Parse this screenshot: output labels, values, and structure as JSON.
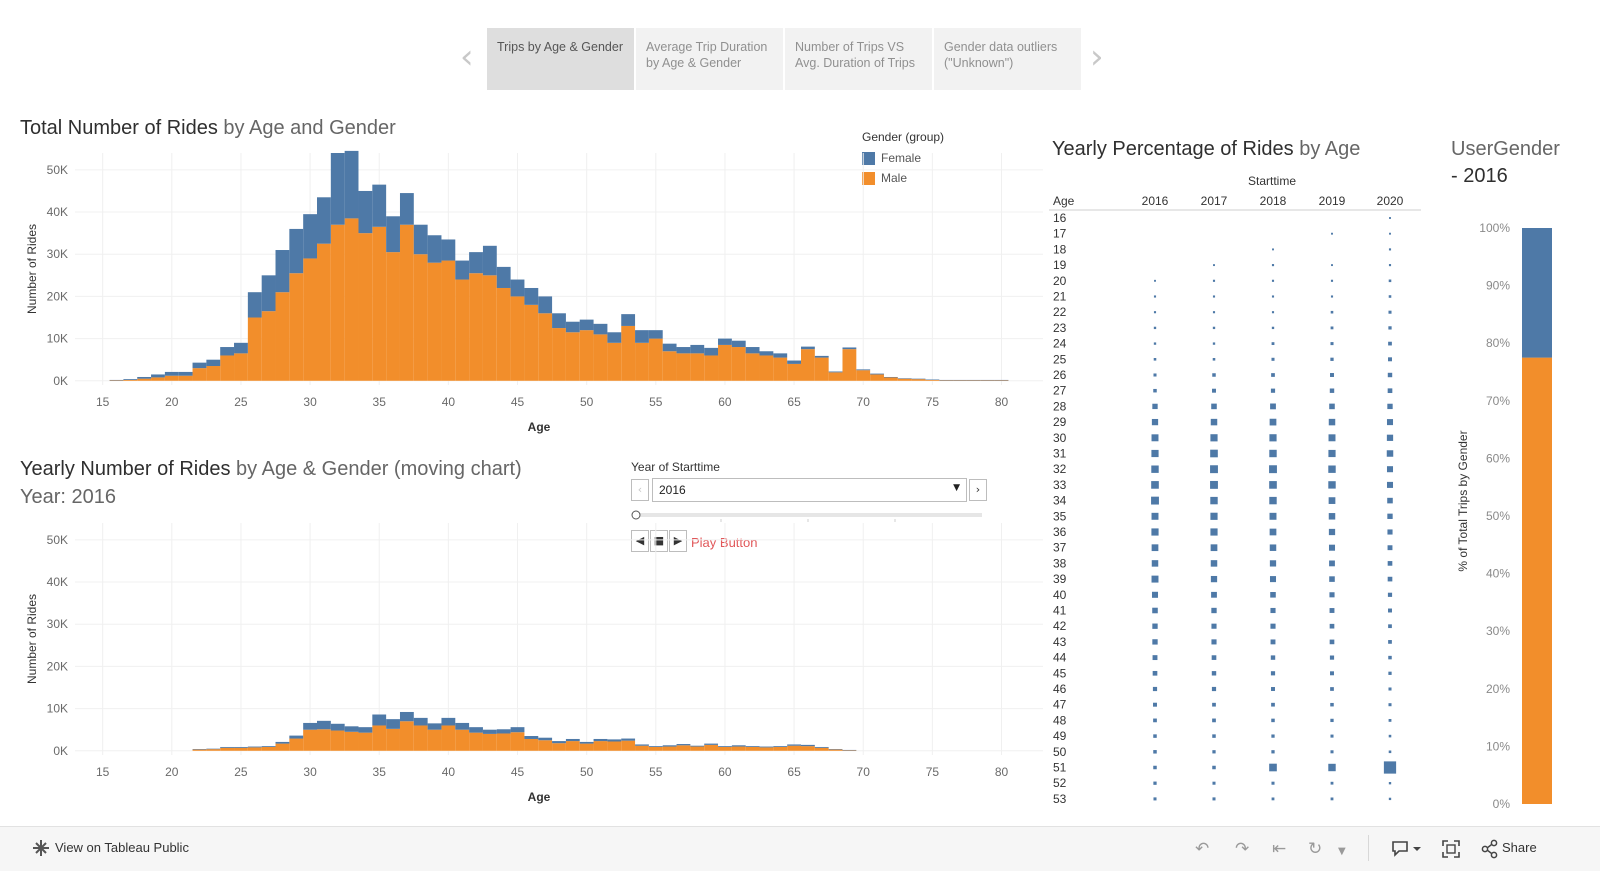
{
  "story": {
    "tabs": [
      {
        "label": "Trips by Age & Gender",
        "active": true
      },
      {
        "label": "Average Trip Duration by Age & Gender",
        "active": false
      },
      {
        "label": "Number of Trips VS Avg. Duration of Trips",
        "active": false
      },
      {
        "label": "Gender data  outliers (\"Unknown\")",
        "active": false
      }
    ],
    "prev_icon": "chevron-left-icon",
    "next_icon": "chevron-right-icon"
  },
  "chart1": {
    "title_bold": "Total Number of Rides",
    "title_rest": " by Age and Gender"
  },
  "legend": {
    "title": "Gender (group)",
    "items": [
      {
        "label": "Female",
        "color": "#4e79a7"
      },
      {
        "label": "Male",
        "color": "#f28e2b"
      }
    ]
  },
  "chart2": {
    "title_bold": "Yearly Number of Rides",
    "title_rest": " by Age & Gender (moving chart)",
    "subtitle": "Year: 2016"
  },
  "year_filter": {
    "label": "Year of Starttime",
    "value": "2016",
    "play_label": "Play Button"
  },
  "chart3": {
    "title_bold": "Yearly Percentage of Rides",
    "title_rest": " by Age",
    "col_header": "Starttime",
    "row_header": "Age"
  },
  "chart4": {
    "title_line1": "UserGender",
    "title_line2": "- 2016",
    "ylabel": "% of Total Trips by Gender"
  },
  "footer": {
    "view_label": "View on Tableau Public",
    "share_label": "Share"
  },
  "chart_data": [
    {
      "type": "bar",
      "stacked": true,
      "title": "Total Number of Rides by Age and Gender",
      "xlabel": "Age",
      "ylabel": "Number of Rides",
      "xlim": [
        13,
        83
      ],
      "ylim": [
        -1000,
        54000
      ],
      "x_ticks": [
        15,
        20,
        25,
        30,
        35,
        40,
        45,
        50,
        55,
        60,
        65,
        70,
        75,
        80
      ],
      "y_ticks": [
        {
          "value": 0,
          "label": "0K"
        },
        {
          "value": 10000,
          "label": "10K"
        },
        {
          "value": 20000,
          "label": "20K"
        },
        {
          "value": 30000,
          "label": "30K"
        },
        {
          "value": 40000,
          "label": "40K"
        },
        {
          "value": 50000,
          "label": "50K"
        }
      ],
      "x": [
        16,
        17,
        18,
        19,
        20,
        21,
        22,
        23,
        24,
        25,
        26,
        27,
        28,
        29,
        30,
        31,
        32,
        33,
        34,
        35,
        36,
        37,
        38,
        39,
        40,
        41,
        42,
        43,
        44,
        45,
        46,
        47,
        48,
        49,
        50,
        51,
        52,
        53,
        54,
        55,
        56,
        57,
        58,
        59,
        60,
        61,
        62,
        63,
        64,
        65,
        66,
        67,
        68,
        69,
        70,
        71,
        72,
        73,
        74,
        75,
        76,
        77,
        78,
        79,
        80
      ],
      "series": [
        {
          "name": "Male",
          "color": "#f28e2b",
          "values": [
            100,
            200,
            500,
            800,
            1200,
            1200,
            3000,
            3500,
            6000,
            6500,
            15000,
            16500,
            21000,
            25500,
            29000,
            32500,
            37000,
            38500,
            35000,
            36500,
            30500,
            37000,
            30000,
            28000,
            28500,
            24000,
            25500,
            25000,
            22000,
            20000,
            18000,
            16000,
            12500,
            11500,
            12000,
            11000,
            9000,
            13000,
            9000,
            10000,
            7000,
            6500,
            6500,
            6000,
            8500,
            8000,
            6500,
            6000,
            5500,
            4000,
            7500,
            5500,
            2000,
            7500,
            2500,
            1500,
            800,
            500,
            400,
            200,
            100,
            100,
            100,
            100,
            100
          ]
        },
        {
          "name": "Female",
          "color": "#4e79a7",
          "values": [
            100,
            200,
            400,
            700,
            900,
            900,
            1300,
            1500,
            2000,
            2500,
            6000,
            8500,
            10000,
            10500,
            10500,
            11000,
            17000,
            16000,
            10000,
            10000,
            8500,
            7500,
            7000,
            6500,
            5000,
            4500,
            5000,
            7000,
            5000,
            4000,
            4000,
            4000,
            3500,
            2500,
            2500,
            2500,
            2500,
            2800,
            3000,
            2000,
            1800,
            1500,
            2000,
            1800,
            1500,
            1500,
            1500,
            1000,
            1000,
            800,
            600,
            400,
            200,
            400,
            200,
            200,
            100,
            100,
            100,
            100,
            100,
            100,
            100,
            100,
            100
          ]
        }
      ]
    },
    {
      "type": "bar",
      "stacked": true,
      "title": "Yearly Number of Rides by Age & Gender (moving chart)",
      "xlabel": "Age",
      "ylabel": "Number of Rides",
      "xlim": [
        13,
        83
      ],
      "ylim": [
        -1000,
        54000
      ],
      "x_ticks": [
        15,
        20,
        25,
        30,
        35,
        40,
        45,
        50,
        55,
        60,
        65,
        70,
        75,
        80
      ],
      "y_ticks": [
        {
          "value": 0,
          "label": "0K"
        },
        {
          "value": 10000,
          "label": "10K"
        },
        {
          "value": 20000,
          "label": "20K"
        },
        {
          "value": 30000,
          "label": "30K"
        },
        {
          "value": 40000,
          "label": "40K"
        },
        {
          "value": 50000,
          "label": "50K"
        }
      ],
      "x": [
        22,
        23,
        24,
        25,
        26,
        27,
        28,
        29,
        30,
        31,
        32,
        33,
        34,
        35,
        36,
        37,
        38,
        39,
        40,
        41,
        42,
        43,
        44,
        45,
        46,
        47,
        48,
        49,
        50,
        51,
        52,
        53,
        54,
        55,
        56,
        57,
        58,
        59,
        60,
        61,
        62,
        63,
        64,
        65,
        66,
        67,
        68,
        69
      ],
      "series": [
        {
          "name": "Male",
          "color": "#f28e2b",
          "values": [
            300,
            400,
            700,
            700,
            800,
            900,
            1700,
            2900,
            5000,
            5100,
            4800,
            4500,
            4300,
            6000,
            5200,
            7000,
            6000,
            5000,
            6000,
            5000,
            4300,
            4000,
            4100,
            4400,
            2800,
            2500,
            1800,
            2300,
            1700,
            2300,
            2200,
            2400,
            1200,
            900,
            1000,
            1300,
            1000,
            1400,
            900,
            1000,
            900,
            800,
            900,
            1200,
            1100,
            700,
            300,
            100
          ]
        },
        {
          "name": "Female",
          "color": "#4e79a7",
          "values": [
            100,
            100,
            200,
            200,
            200,
            200,
            400,
            700,
            1600,
            2000,
            1600,
            1300,
            1300,
            2600,
            2300,
            2200,
            1800,
            1500,
            1800,
            1600,
            1300,
            1000,
            1000,
            1200,
            700,
            600,
            500,
            500,
            400,
            500,
            500,
            500,
            300,
            200,
            300,
            300,
            200,
            300,
            200,
            300,
            200,
            200,
            200,
            300,
            300,
            200,
            100,
            100
          ]
        }
      ]
    },
    {
      "type": "scatter",
      "title": "Yearly Percentage of Rides by Age",
      "xlabel": "Starttime",
      "ylabel": "Age",
      "columns": [
        "2016",
        "2017",
        "2018",
        "2019",
        "2020"
      ],
      "rows": [
        16,
        17,
        18,
        19,
        20,
        21,
        22,
        23,
        24,
        25,
        26,
        27,
        28,
        29,
        30,
        31,
        32,
        33,
        34,
        35,
        36,
        37,
        38,
        39,
        40,
        41,
        42,
        43,
        44,
        45,
        46,
        47,
        48,
        49,
        50,
        51,
        52,
        53
      ],
      "color": "#4e79a7",
      "values": [
        [
          0,
          0,
          0,
          0,
          0.3
        ],
        [
          0,
          0,
          0,
          0.3,
          0.3
        ],
        [
          0,
          0,
          0.3,
          0,
          0.4
        ],
        [
          0,
          0.3,
          0.4,
          0.3,
          0.4
        ],
        [
          0.3,
          0.4,
          0.4,
          0.4,
          0.6
        ],
        [
          0.4,
          0.4,
          0.4,
          0.4,
          0.6
        ],
        [
          0.4,
          0.4,
          0.4,
          0.6,
          0.8
        ],
        [
          0.5,
          0.5,
          0.5,
          0.7,
          0.9
        ],
        [
          0.5,
          0.5,
          0.7,
          0.8,
          1.1
        ],
        [
          0.6,
          0.6,
          0.8,
          0.9,
          1.2
        ],
        [
          0.8,
          1.0,
          1.1,
          1.2,
          1.4
        ],
        [
          1.0,
          1.2,
          1.3,
          1.4,
          1.5
        ],
        [
          1.8,
          1.9,
          2.0,
          1.9,
          1.8
        ],
        [
          2.2,
          2.3,
          2.4,
          2.3,
          2.1
        ],
        [
          2.5,
          2.6,
          2.6,
          2.5,
          2.2
        ],
        [
          2.6,
          2.8,
          2.7,
          2.6,
          2.3
        ],
        [
          2.7,
          2.9,
          2.9,
          2.7,
          2.1
        ],
        [
          2.8,
          2.9,
          2.8,
          2.7,
          2.1
        ],
        [
          2.9,
          2.7,
          2.7,
          2.4,
          1.9
        ],
        [
          2.5,
          2.6,
          2.5,
          2.3,
          1.8
        ],
        [
          2.6,
          2.6,
          2.4,
          2.2,
          1.7
        ],
        [
          2.4,
          2.4,
          2.3,
          2.1,
          1.6
        ],
        [
          2.3,
          2.3,
          2.2,
          2.0,
          1.5
        ],
        [
          2.5,
          2.2,
          2.1,
          1.9,
          1.5
        ],
        [
          2.1,
          2.0,
          1.9,
          1.7,
          1.3
        ],
        [
          1.9,
          1.8,
          1.7,
          1.6,
          1.2
        ],
        [
          1.8,
          1.7,
          1.7,
          1.5,
          1.1
        ],
        [
          1.8,
          1.7,
          1.6,
          1.5,
          1.1
        ],
        [
          1.6,
          1.5,
          1.4,
          1.3,
          1.0
        ],
        [
          1.5,
          1.4,
          1.3,
          1.2,
          0.9
        ],
        [
          1.3,
          1.3,
          1.2,
          1.1,
          0.8
        ],
        [
          1.2,
          1.1,
          1.1,
          1.0,
          0.8
        ],
        [
          1.1,
          1.1,
          1.0,
          0.9,
          0.7
        ],
        [
          1.0,
          1.0,
          0.9,
          0.8,
          0.6
        ],
        [
          1.0,
          0.9,
          0.9,
          0.8,
          0.6
        ],
        [
          1.0,
          1.0,
          2.8,
          2.7,
          4.8
        ],
        [
          0.9,
          0.8,
          0.8,
          0.7,
          0.5
        ],
        [
          0.8,
          0.8,
          0.7,
          0.7,
          0.5
        ]
      ]
    },
    {
      "type": "bar",
      "stacked": true,
      "title": "UserGender - 2016",
      "ylabel": "% of Total Trips by Gender",
      "ylim": [
        0,
        100
      ],
      "y_ticks": [
        "0%",
        "10%",
        "20%",
        "30%",
        "40%",
        "50%",
        "60%",
        "70%",
        "80%",
        "90%",
        "100%"
      ],
      "series": [
        {
          "name": "Male",
          "color": "#f28e2b",
          "values": [
            77.5
          ]
        },
        {
          "name": "Female",
          "color": "#4e79a7",
          "values": [
            22.5
          ]
        }
      ]
    }
  ]
}
